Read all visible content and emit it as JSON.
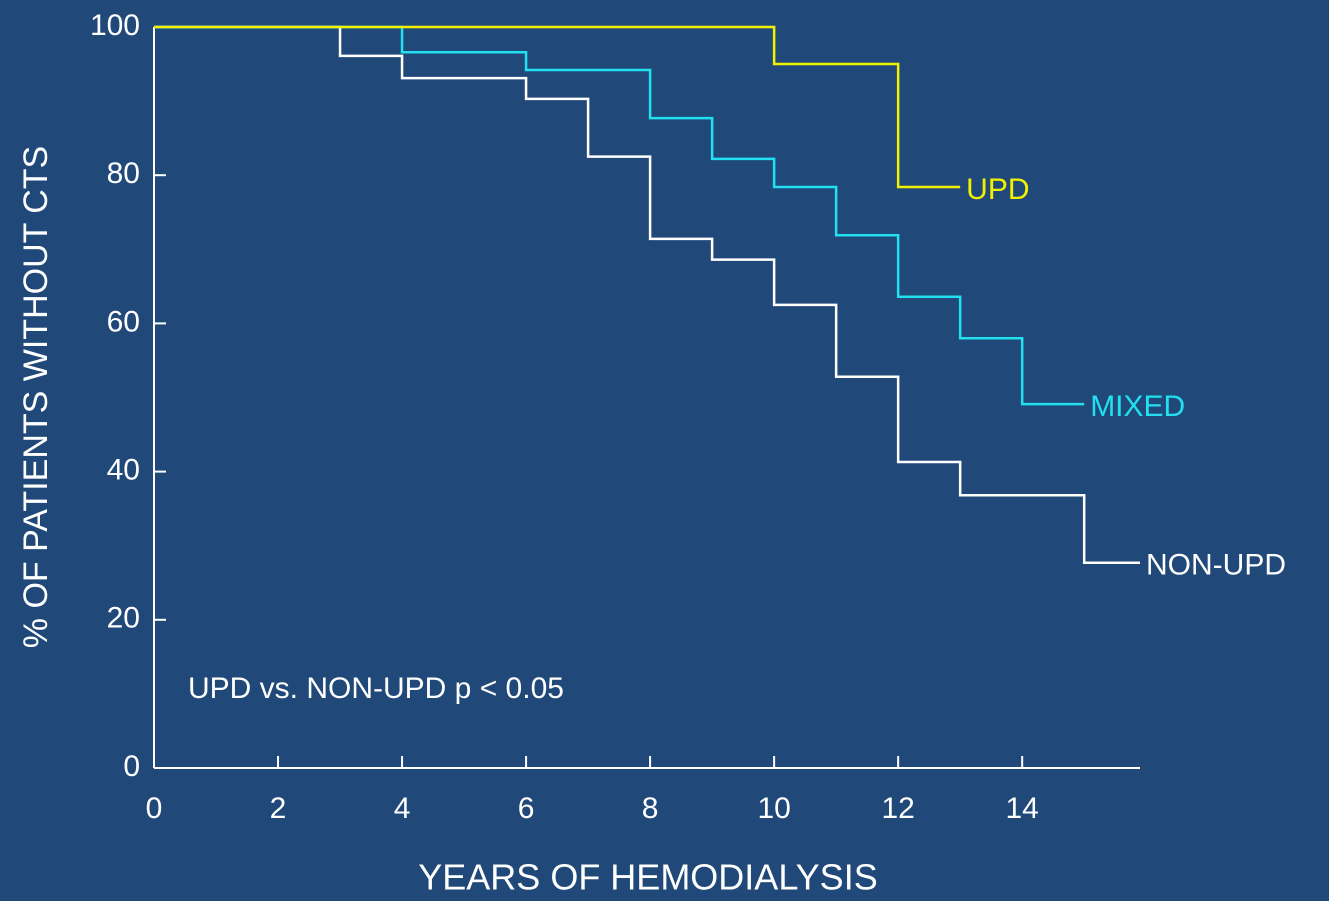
{
  "chart_data": {
    "type": "step",
    "xlabel": "YEARS OF HEMODIALYSIS",
    "ylabel": "% OF PATIENTS WITHOUT CTS",
    "annotation": "UPD vs. NON-UPD p < 0.05",
    "xlim": [
      0,
      15.9
    ],
    "xticks": [
      0,
      2,
      4,
      6,
      8,
      10,
      12,
      14
    ],
    "ylim": [
      0,
      100
    ],
    "yticks": [
      0,
      20,
      40,
      60,
      80,
      100
    ],
    "series": [
      {
        "name": "UPD",
        "color": "#f2f200",
        "x": [
          0,
          10,
          12,
          13
        ],
        "values": [
          100,
          95,
          78.4,
          78.4
        ]
      },
      {
        "name": "MIXED",
        "color": "#22e0f0",
        "x": [
          0,
          4,
          6,
          8,
          9,
          10,
          11,
          12,
          13,
          14,
          15
        ],
        "values": [
          100,
          96.6,
          94.2,
          87.7,
          82.2,
          78.4,
          71.9,
          63.6,
          58,
          49.1,
          49.1
        ]
      },
      {
        "name": "NON-UPD",
        "color": "#ffffff",
        "x": [
          0,
          3,
          4,
          6,
          7,
          8,
          9,
          10,
          11,
          12,
          13,
          15,
          15.9
        ],
        "values": [
          100,
          96.1,
          93.1,
          90.3,
          82.5,
          71.4,
          68.6,
          62.5,
          52.8,
          41.3,
          36.8,
          27.7,
          27.7
        ]
      }
    ]
  }
}
